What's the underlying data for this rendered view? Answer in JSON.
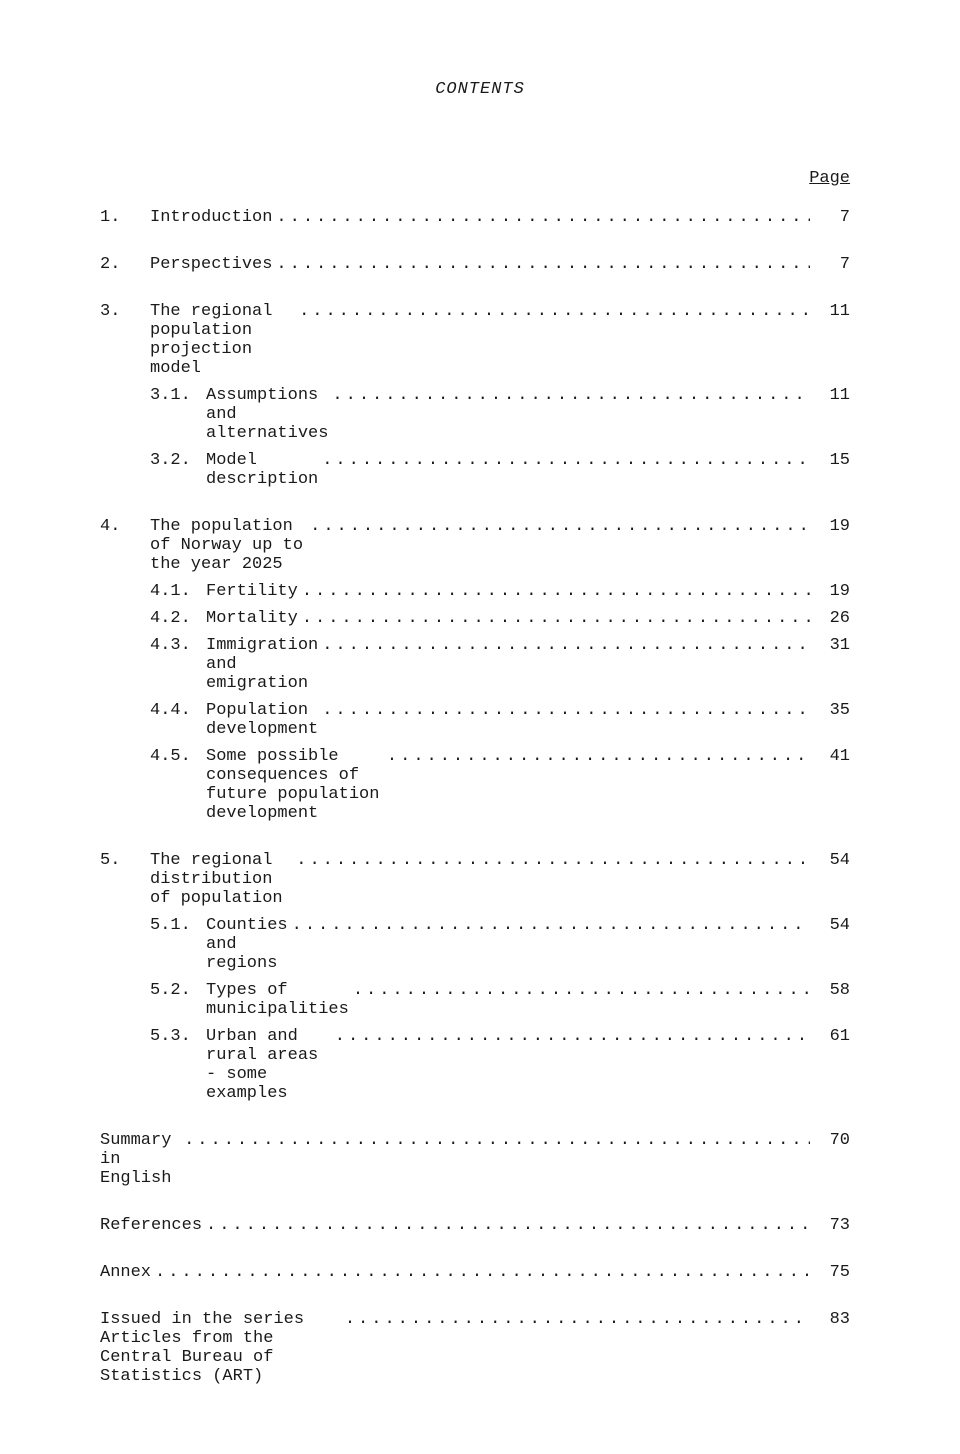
{
  "title": "CONTENTS",
  "page_label": "Page",
  "fonts": {
    "body_size_pt": 13,
    "family": "Courier New"
  },
  "colors": {
    "text": "#1a1a1a",
    "bg": "#ffffff"
  },
  "entries": [
    {
      "num": "1.",
      "text": "Introduction",
      "page": "7",
      "level": 0
    },
    {
      "num": "2.",
      "text": "Perspectives",
      "page": "7",
      "level": 0
    },
    {
      "num": "3.",
      "text": "The regional population projection model",
      "page": "11",
      "level": 0
    },
    {
      "num": "3.1.",
      "text": "Assumptions and alternatives",
      "page": "11",
      "level": 1
    },
    {
      "num": "3.2.",
      "text": "Model description",
      "page": "15",
      "level": 1
    },
    {
      "num": "4.",
      "text": "The population of Norway up to the year 2025",
      "page": "19",
      "level": 0
    },
    {
      "num": "4.1.",
      "text": "Fertility",
      "page": "19",
      "level": 1
    },
    {
      "num": "4.2.",
      "text": "Mortality",
      "page": "26",
      "level": 1
    },
    {
      "num": "4.3.",
      "text": "Immigration and emigration",
      "page": "31",
      "level": 1
    },
    {
      "num": "4.4.",
      "text": "Population development",
      "page": "35",
      "level": 1
    },
    {
      "num": "4.5.",
      "text": "Some possible consequences of future population development",
      "page": "41",
      "level": 1
    },
    {
      "num": "5.",
      "text": "The regional distribution of population",
      "page": "54",
      "level": 0
    },
    {
      "num": "5.1.",
      "text": "Counties and regions",
      "page": "54",
      "level": 1
    },
    {
      "num": "5.2.",
      "text": "Types of municipalities",
      "page": "58",
      "level": 1
    },
    {
      "num": "5.3.",
      "text": "Urban and rural areas - some examples",
      "page": "61",
      "level": 1
    },
    {
      "num": "",
      "text": "Summary in English",
      "page": "70",
      "level": -1
    },
    {
      "num": "",
      "text": "References",
      "page": "73",
      "level": -1
    },
    {
      "num": "",
      "text": "Annex",
      "page": "75",
      "level": -1
    },
    {
      "num": "",
      "text": "Issued in the series Articles from the Central Bureau of Statistics (ART)",
      "page": "83",
      "level": -1
    }
  ]
}
